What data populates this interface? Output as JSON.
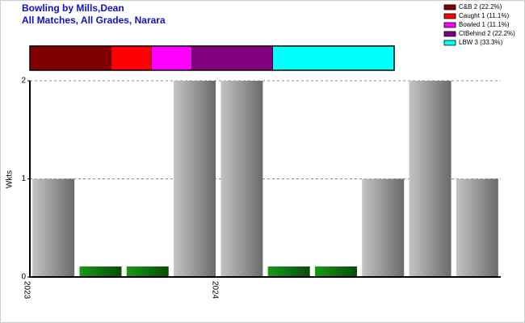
{
  "chart_data": {
    "type": "bar",
    "title": [
      "Bowling by Mills,Dean",
      "All Matches, All Grades, Narara"
    ],
    "ylabel": "Wkts",
    "categories": [
      "2023",
      null,
      null,
      null,
      "2024",
      null,
      null,
      null,
      null,
      null
    ],
    "values": [
      1,
      0,
      0,
      2,
      2,
      0,
      0,
      1,
      2,
      1
    ],
    "ylim": [
      0,
      2
    ],
    "yticks": [
      0,
      1,
      2
    ],
    "grid": true,
    "dismissals": [
      {
        "label": "C&B 2 (22.2%)",
        "count": 2,
        "color": "#800000"
      },
      {
        "label": "Caught 1 (11.1%)",
        "count": 1,
        "color": "#ff0000"
      },
      {
        "label": "Bowled 1 (11.1%)",
        "count": 1,
        "color": "#ff00ff"
      },
      {
        "label": "CtBehind 2 (22.2%)",
        "count": 2,
        "color": "#800080"
      },
      {
        "label": "LBW 3 (33.3%)",
        "count": 3,
        "color": "#00ffff"
      }
    ]
  }
}
